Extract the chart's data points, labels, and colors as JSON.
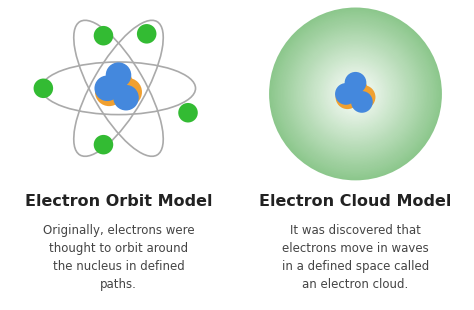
{
  "background_color": "#ffffff",
  "left_title": "Electron Orbit Model",
  "right_title": "Electron Cloud Model",
  "left_desc": "Originally, electrons were\nthought to orbit around\nthe nucleus in defined\npaths.",
  "right_desc": "It was discovered that\nelectrons move in waves\nin a defined space called\nan electron cloud.",
  "title_fontsize": 11.5,
  "desc_fontsize": 8.5,
  "nucleus_blue": "#4488dd",
  "nucleus_orange": "#f0a030",
  "electron_green": "#33bb33",
  "orbit_color": "#aaaaaa",
  "text_color": "#222222",
  "desc_color": "#444444"
}
